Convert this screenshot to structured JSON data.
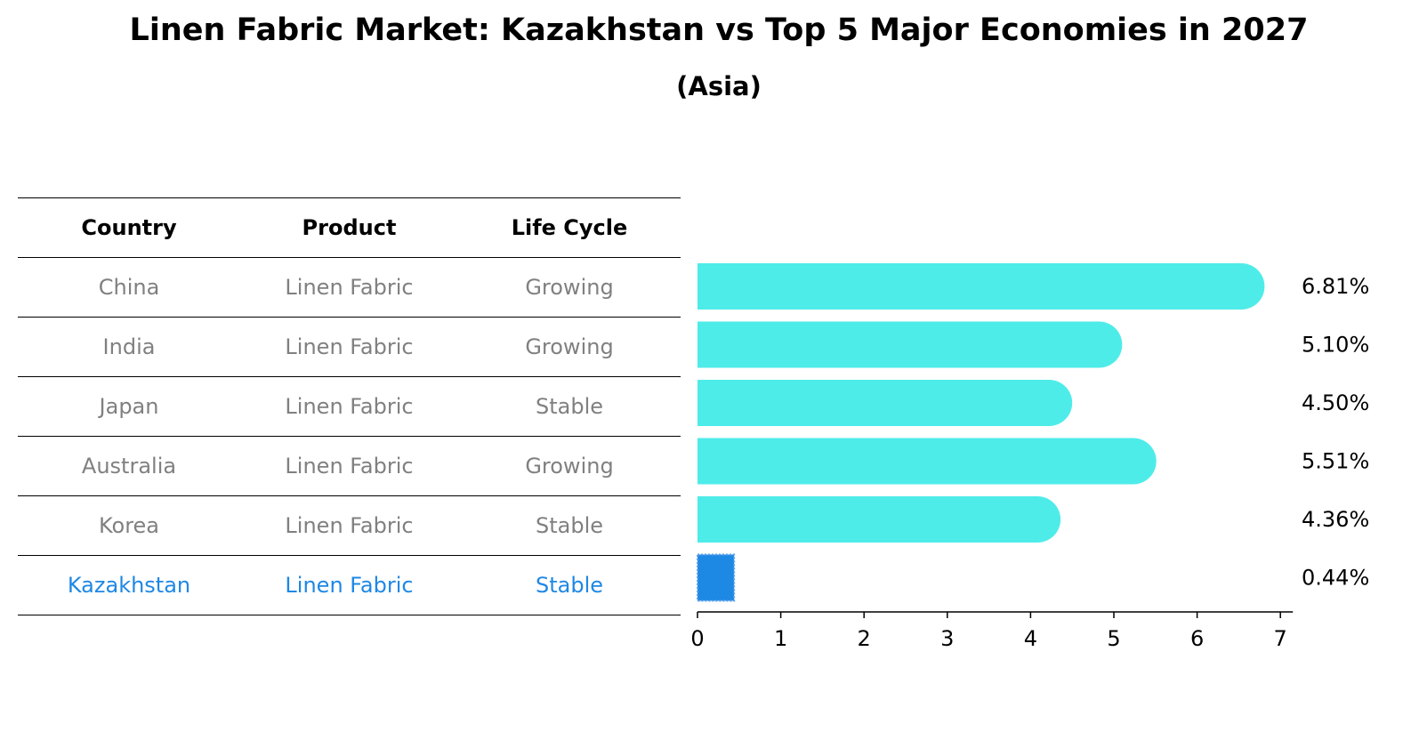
{
  "header": {
    "title": "Linen Fabric Market: Kazakhstan vs Top 5 Major Economies in 2027",
    "subtitle": "(Asia)"
  },
  "table": {
    "columns": [
      "Country",
      "Product",
      "Life Cycle"
    ],
    "rows": [
      {
        "country": "China",
        "product": "Linen Fabric",
        "life_cycle": "Growing"
      },
      {
        "country": "India",
        "product": "Linen Fabric",
        "life_cycle": "Growing"
      },
      {
        "country": "Japan",
        "product": "Linen Fabric",
        "life_cycle": "Stable"
      },
      {
        "country": "Australia",
        "product": "Linen Fabric",
        "life_cycle": "Growing"
      },
      {
        "country": "Korea",
        "product": "Linen Fabric",
        "life_cycle": "Stable"
      },
      {
        "country": "Kazakhstan",
        "product": "Linen Fabric",
        "life_cycle": "Stable"
      }
    ]
  },
  "colors": {
    "bar": "#4eece9",
    "highlight": "#1e88e5",
    "muted_text": "#808080"
  },
  "chart_data": {
    "type": "bar",
    "orientation": "horizontal",
    "title": "Linen Fabric Market: Kazakhstan vs Top 5 Major Economies in 2027",
    "subtitle": "(Asia)",
    "categories": [
      "China",
      "India",
      "Japan",
      "Australia",
      "Korea",
      "Kazakhstan"
    ],
    "values": [
      6.81,
      5.1,
      4.5,
      5.51,
      4.36,
      0.44
    ],
    "value_labels": [
      "6.81%",
      "5.10%",
      "4.50%",
      "5.51%",
      "4.36%",
      "0.44%"
    ],
    "highlight": "Kazakhstan",
    "xlim": [
      0,
      7.15
    ],
    "xticks": [
      0,
      1,
      2,
      3,
      4,
      5,
      6,
      7
    ],
    "xlabel": "",
    "ylabel": "",
    "grid": false
  }
}
